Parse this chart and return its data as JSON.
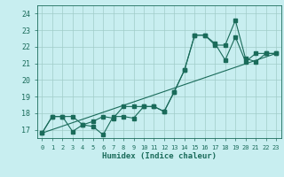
{
  "title": "",
  "xlabel": "Humidex (Indice chaleur)",
  "bg_color": "#c8eef0",
  "grid_color": "#a0ccc8",
  "line_color": "#1a6b5a",
  "xlim": [
    -0.5,
    23.5
  ],
  "ylim": [
    16.5,
    24.5
  ],
  "x_ticks": [
    0,
    1,
    2,
    3,
    4,
    5,
    6,
    7,
    8,
    9,
    10,
    11,
    12,
    13,
    14,
    15,
    16,
    17,
    18,
    19,
    20,
    21,
    22,
    23
  ],
  "y_ticks": [
    17,
    18,
    19,
    20,
    21,
    22,
    23,
    24
  ],
  "line1_x": [
    0,
    1,
    2,
    3,
    4,
    5,
    6,
    7,
    8,
    9,
    10,
    11,
    12,
    13,
    14,
    15,
    16,
    17,
    18,
    19,
    20,
    21,
    22,
    23
  ],
  "line1_y": [
    16.8,
    17.8,
    17.8,
    16.9,
    17.3,
    17.2,
    16.7,
    17.8,
    17.8,
    17.7,
    18.4,
    18.4,
    18.1,
    19.3,
    20.6,
    22.7,
    22.7,
    22.2,
    21.2,
    22.6,
    21.1,
    21.6,
    21.6,
    21.6
  ],
  "line2_x": [
    0,
    1,
    2,
    3,
    4,
    5,
    6,
    7,
    8,
    9,
    10,
    11,
    12,
    13,
    14,
    15,
    16,
    17,
    18,
    19,
    20,
    21,
    22,
    23
  ],
  "line2_y": [
    16.8,
    17.8,
    17.8,
    17.8,
    17.3,
    17.5,
    17.8,
    17.7,
    18.4,
    18.4,
    18.4,
    18.4,
    18.1,
    19.3,
    20.6,
    22.7,
    22.7,
    22.1,
    22.1,
    23.6,
    21.3,
    21.1,
    21.6,
    21.6
  ],
  "line3_x": [
    0,
    23
  ],
  "line3_y": [
    16.8,
    21.6
  ],
  "marker_size": 2.5,
  "linewidth": 0.8,
  "tick_fontsize": 5.5,
  "xlabel_fontsize": 6.5
}
